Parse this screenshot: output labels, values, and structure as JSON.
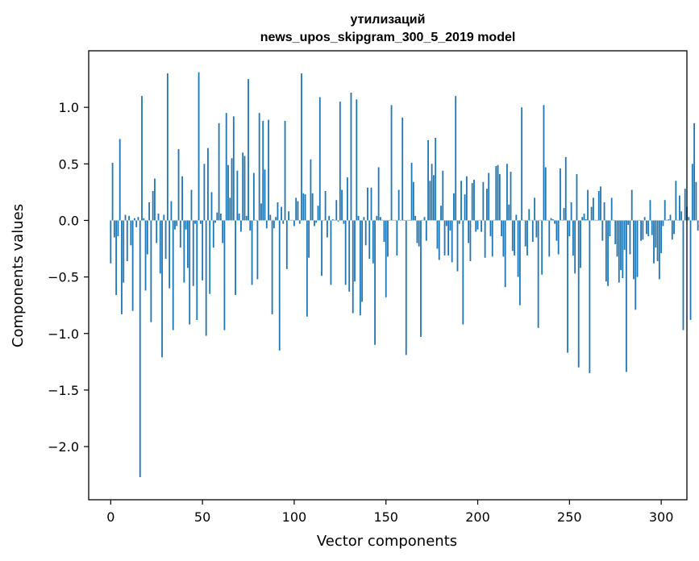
{
  "chart_data": {
    "type": "bar",
    "title": "утилизаций",
    "subtitle": "news_upos_skipgram_300_5_2019 model",
    "xlabel": "Vector components",
    "ylabel": "Components values",
    "xlim": [
      -12,
      314
    ],
    "ylim": [
      -2.47,
      1.5
    ],
    "x_ticks": [
      0,
      50,
      100,
      150,
      200,
      250,
      300
    ],
    "x_tick_labels": [
      "0",
      "50",
      "100",
      "150",
      "200",
      "250",
      "300"
    ],
    "y_ticks": [
      -2.0,
      -1.5,
      -1.0,
      -0.5,
      0.0,
      0.5,
      1.0
    ],
    "y_tick_labels": [
      "−2.0",
      "−1.5",
      "−1.0",
      "−0.5",
      "0.0",
      "0.5",
      "1.0"
    ],
    "grid": false,
    "bar_color": "#1f77b4",
    "values": [
      -0.38,
      0.51,
      -0.15,
      -0.66,
      -0.14,
      0.72,
      -0.83,
      -0.55,
      0.05,
      -0.36,
      0.04,
      -0.22,
      -0.8,
      0.02,
      -0.06,
      0.03,
      -2.27,
      1.1,
      0.02,
      -0.62,
      -0.3,
      0.16,
      -0.9,
      0.26,
      0.37,
      -0.2,
      0.06,
      -0.47,
      -1.21,
      0.05,
      -0.34,
      1.3,
      -0.6,
      0.17,
      -0.97,
      -0.08,
      -0.05,
      0.63,
      -0.24,
      0.39,
      -0.55,
      -0.08,
      -0.42,
      -0.92,
      0.27,
      -0.58,
      -0.03,
      -0.88,
      1.31,
      -0.03,
      -0.53,
      0.5,
      -1.02,
      0.64,
      -0.65,
      0.25,
      -0.24,
      -0.02,
      0.07,
      0.86,
      0.06,
      -0.2,
      -0.97,
      0.95,
      0.49,
      0.2,
      0.55,
      0.92,
      -0.66,
      0.44,
      0.06,
      -0.1,
      0.6,
      0.57,
      0.04,
      1.25,
      -0.09,
      -0.57,
      0.42,
      0.0,
      -0.52,
      0.95,
      0.15,
      0.88,
      0.45,
      -0.07,
      0.89,
      0.05,
      -0.83,
      -0.07,
      0.03,
      0.16,
      -1.15,
      0.12,
      -0.03,
      0.88,
      -0.43,
      0.08,
      0.0,
      0.0,
      -0.05,
      0.2,
      0.17,
      -0.03,
      1.3,
      0.24,
      0.23,
      -0.85,
      -0.33,
      0.54,
      0.24,
      -0.05,
      -0.02,
      0.13,
      1.09,
      -0.49,
      0.0,
      0.26,
      -0.15,
      0.04,
      -0.57,
      0.01,
      0.0,
      0.18,
      -0.01,
      1.05,
      0.27,
      -0.03,
      -0.57,
      0.38,
      -0.63,
      1.13,
      -0.82,
      -0.54,
      1.07,
      0.04,
      -0.84,
      -0.72,
      0.03,
      -0.22,
      0.29,
      -0.34,
      0.29,
      -0.38,
      -1.1,
      0.04,
      0.47,
      0.03,
      0.0,
      -0.19,
      -0.68,
      -0.32,
      0.0,
      1.02,
      0.0,
      0.0,
      -0.31,
      0.27,
      0.0,
      0.91,
      0.0,
      -1.19,
      0.0,
      0.0,
      0.51,
      0.34,
      0.04,
      -0.2,
      -0.23,
      -1.03,
      0.0,
      0.03,
      -0.18,
      0.71,
      0.35,
      0.5,
      0.4,
      0.73,
      -0.25,
      -0.35,
      0.13,
      0.44,
      -0.31,
      -0.05,
      -0.31,
      -0.09,
      -0.37,
      0.24,
      1.1,
      -0.45,
      -0.03,
      0.35,
      -0.92,
      0.23,
      0.39,
      -0.2,
      -0.36,
      0.33,
      0.36,
      -0.1,
      -0.08,
      0.0,
      -0.1,
      0.34,
      -0.33,
      0.28,
      0.42,
      -0.14,
      -0.32,
      0.0,
      0.48,
      0.49,
      0.41,
      -0.14,
      -0.32,
      -0.59,
      0.5,
      0.14,
      0.43,
      -0.27,
      -0.31,
      0.05,
      -0.5,
      -0.75,
      1.0,
      0.0,
      -0.23,
      -0.31,
      0.1,
      0.0,
      -0.19,
      0.2,
      -0.15,
      -0.95,
      0.0,
      -0.48,
      1.02,
      0.47,
      0.0,
      -0.32,
      0.02,
      0.01,
      -0.03,
      -0.18,
      -0.3,
      0.46,
      0.0,
      0.11,
      0.56,
      -1.17,
      -0.14,
      0.16,
      -0.31,
      -0.47,
      0.41,
      -1.3,
      -0.42,
      0.03,
      0.06,
      0.01,
      0.27,
      -1.35,
      0.12,
      0.2,
      0.0,
      0.0,
      0.26,
      0.3,
      -0.18,
      0.16,
      -0.54,
      -0.58,
      -0.14,
      0.2,
      0.0,
      -0.21,
      -0.32,
      -0.55,
      -0.44,
      -0.51,
      -0.26,
      -1.34,
      -0.04,
      -0.3,
      0.27,
      -0.52,
      -0.79,
      -0.5,
      0.0,
      -0.18,
      -0.17,
      0.03,
      -0.12,
      -0.14,
      0.18,
      -0.13,
      -0.38,
      -0.24,
      -0.36,
      -0.52,
      -0.29,
      -0.05,
      0.18,
      0.0,
      0.01,
      0.05,
      -0.17,
      -0.12,
      0.35,
      0.0,
      0.22,
      0.08,
      -0.97,
      0.28,
      0.12,
      0.03,
      -0.88,
      0.5,
      0.86,
      0.34,
      -0.09
    ]
  }
}
